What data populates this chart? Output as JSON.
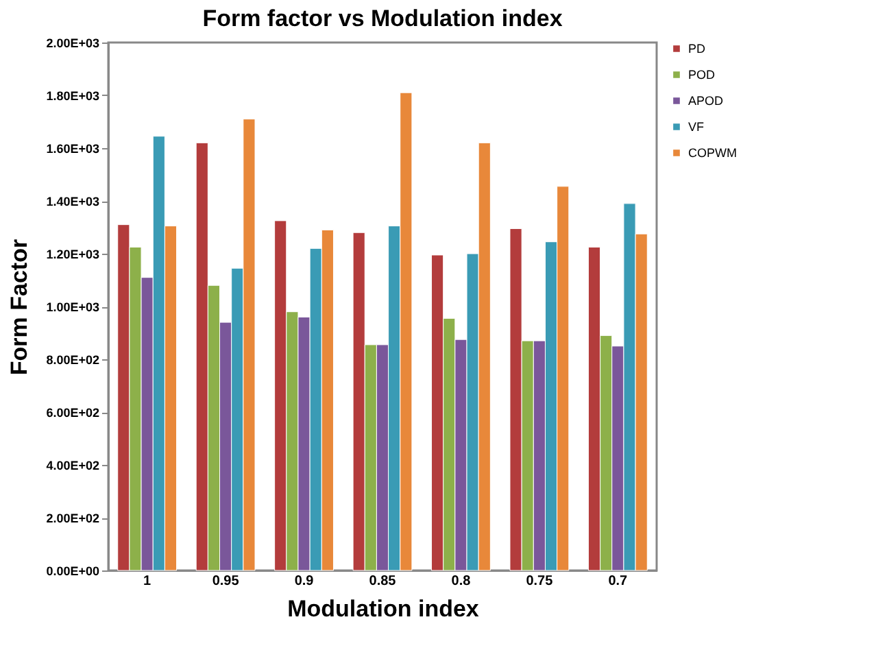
{
  "chart_data": {
    "type": "bar",
    "title": "Form factor vs Modulation index",
    "xlabel": "Modulation index",
    "ylabel": "Form Factor",
    "categories": [
      "1",
      "0.95",
      "0.9",
      "0.85",
      "0.8",
      "0.75",
      "0.7"
    ],
    "series": [
      {
        "name": "PD",
        "color": "#b33c3c",
        "values": [
          1310,
          1620,
          1325,
          1280,
          1195,
          1295,
          1225
        ]
      },
      {
        "name": "POD",
        "color": "#8db04a",
        "values": [
          1225,
          1080,
          980,
          855,
          955,
          870,
          890
        ]
      },
      {
        "name": "APOD",
        "color": "#7a579a",
        "values": [
          1110,
          940,
          960,
          855,
          875,
          870,
          850
        ]
      },
      {
        "name": "VF",
        "color": "#3a9bb5",
        "values": [
          1645,
          1145,
          1220,
          1305,
          1200,
          1245,
          1390
        ]
      },
      {
        "name": "COPWM",
        "color": "#e8883a",
        "values": [
          1305,
          1710,
          1290,
          1810,
          1620,
          1455,
          1275
        ]
      }
    ],
    "ylim": [
      0,
      2000
    ],
    "yticks": [
      {
        "value": 0,
        "label": "0.00E+00"
      },
      {
        "value": 200,
        "label": "2.00E+02"
      },
      {
        "value": 400,
        "label": "4.00E+02"
      },
      {
        "value": 600,
        "label": "6.00E+02"
      },
      {
        "value": 800,
        "label": "8.00E+02"
      },
      {
        "value": 1000,
        "label": "1.00E+03"
      },
      {
        "value": 1200,
        "label": "1.20E+03"
      },
      {
        "value": 1400,
        "label": "1.40E+03"
      },
      {
        "value": 1600,
        "label": "1.60E+03"
      },
      {
        "value": 1800,
        "label": "1.80E+03"
      },
      {
        "value": 2000,
        "label": "2.00E+03"
      }
    ],
    "grid": false,
    "legend": "right"
  }
}
